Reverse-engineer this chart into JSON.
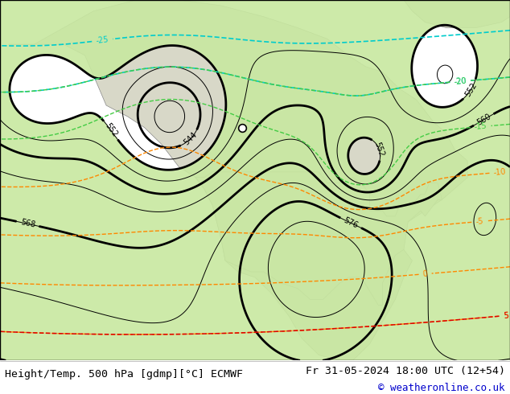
{
  "title_left": "Height/Temp. 500 hPa [gdmp][°C] ECMWF",
  "title_right": "Fr 31-05-2024 18:00 UTC (12+54)",
  "copyright": "© weatheronline.co.uk",
  "bg_color": "#ffffff",
  "bottom_bar_color": "#e8e8e8",
  "text_color": "#000000",
  "copyright_color": "#0000cc",
  "figsize": [
    6.34,
    4.9
  ],
  "dpi": 100,
  "title_fontsize": 9.5,
  "copyright_fontsize": 9.0,
  "contour_label_fontsize": 7,
  "ocean_color": "#c8d8e8",
  "land_color": "#d8d8c8",
  "green_fill_color": "#c8e8a0",
  "color_black": "#000000",
  "color_orange": "#ff8800",
  "color_cyan": "#00cccc",
  "color_green": "#44cc44",
  "color_red": "#dd0000"
}
